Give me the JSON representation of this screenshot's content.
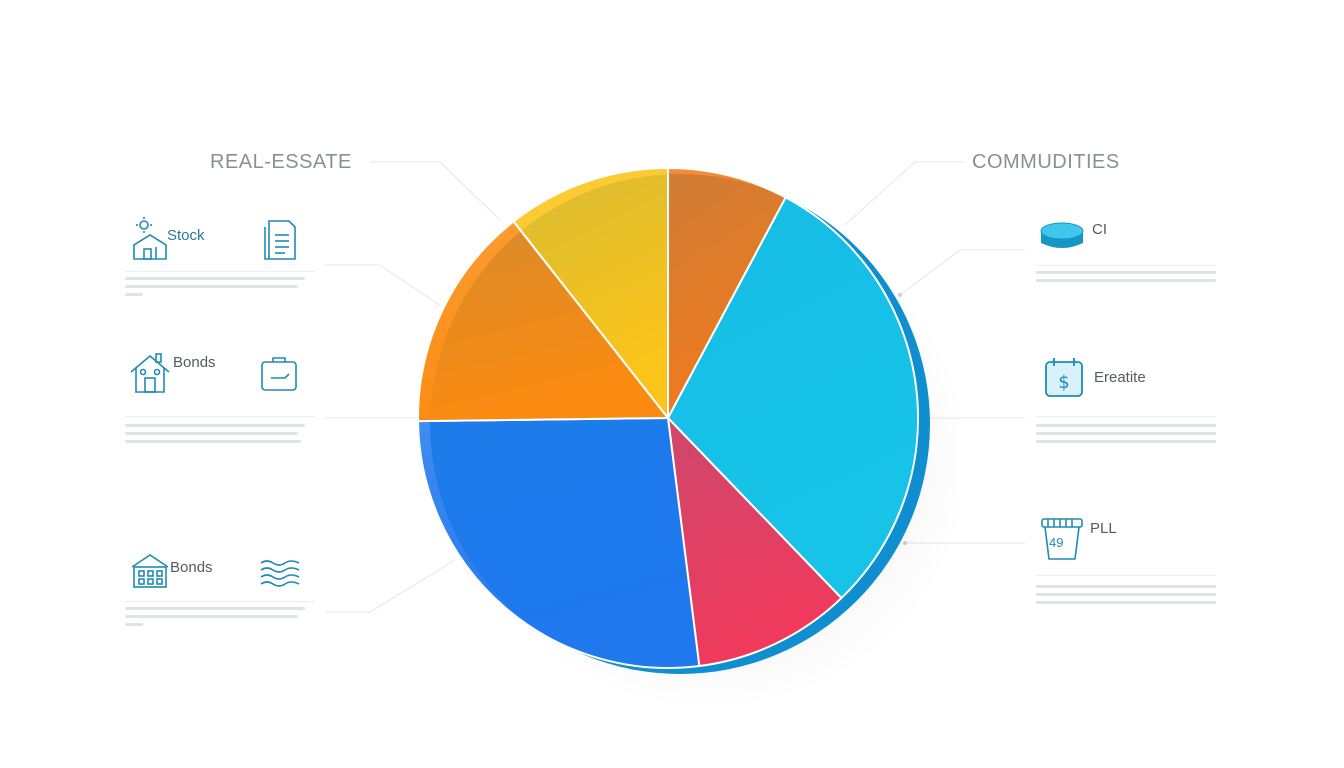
{
  "chart_data": {
    "type": "pie",
    "title": "",
    "slices": [
      {
        "name": "",
        "value": 7.8,
        "color": "#f07a1c"
      },
      {
        "name": "",
        "value": 30.0,
        "color": "#17c4e8"
      },
      {
        "name": "",
        "value": 10.2,
        "color": "#f03a5c"
      },
      {
        "name": "",
        "value": 26.8,
        "color": "#1f78ee"
      },
      {
        "name": "",
        "value": 14.6,
        "color": "#fb8b10"
      },
      {
        "name": "",
        "value": 10.6,
        "color": "#fcc418"
      }
    ]
  },
  "labels": {
    "real_estate": "REAL-ESSATE",
    "commudities": "COMMUDITIES"
  },
  "legend_left": [
    {
      "label": "Stock",
      "icon": "house-sun-icon",
      "side_icon": "document-icon"
    },
    {
      "label": "Bonds",
      "icon": "house-icon",
      "side_icon": "briefcase-icon"
    },
    {
      "label": "Bonds",
      "icon": "building-icon",
      "side_icon": "waves-icon"
    }
  ],
  "legend_right": [
    {
      "label": "CI",
      "icon": "coin-stack-icon"
    },
    {
      "label": "Ereatite",
      "icon": "dollar-calendar-icon"
    },
    {
      "label": "PLL",
      "icon": "cup-icon",
      "icon_text": "49"
    }
  ],
  "colors": {
    "accent": "#1f8bb4",
    "label_gray": "#8a8f96"
  }
}
